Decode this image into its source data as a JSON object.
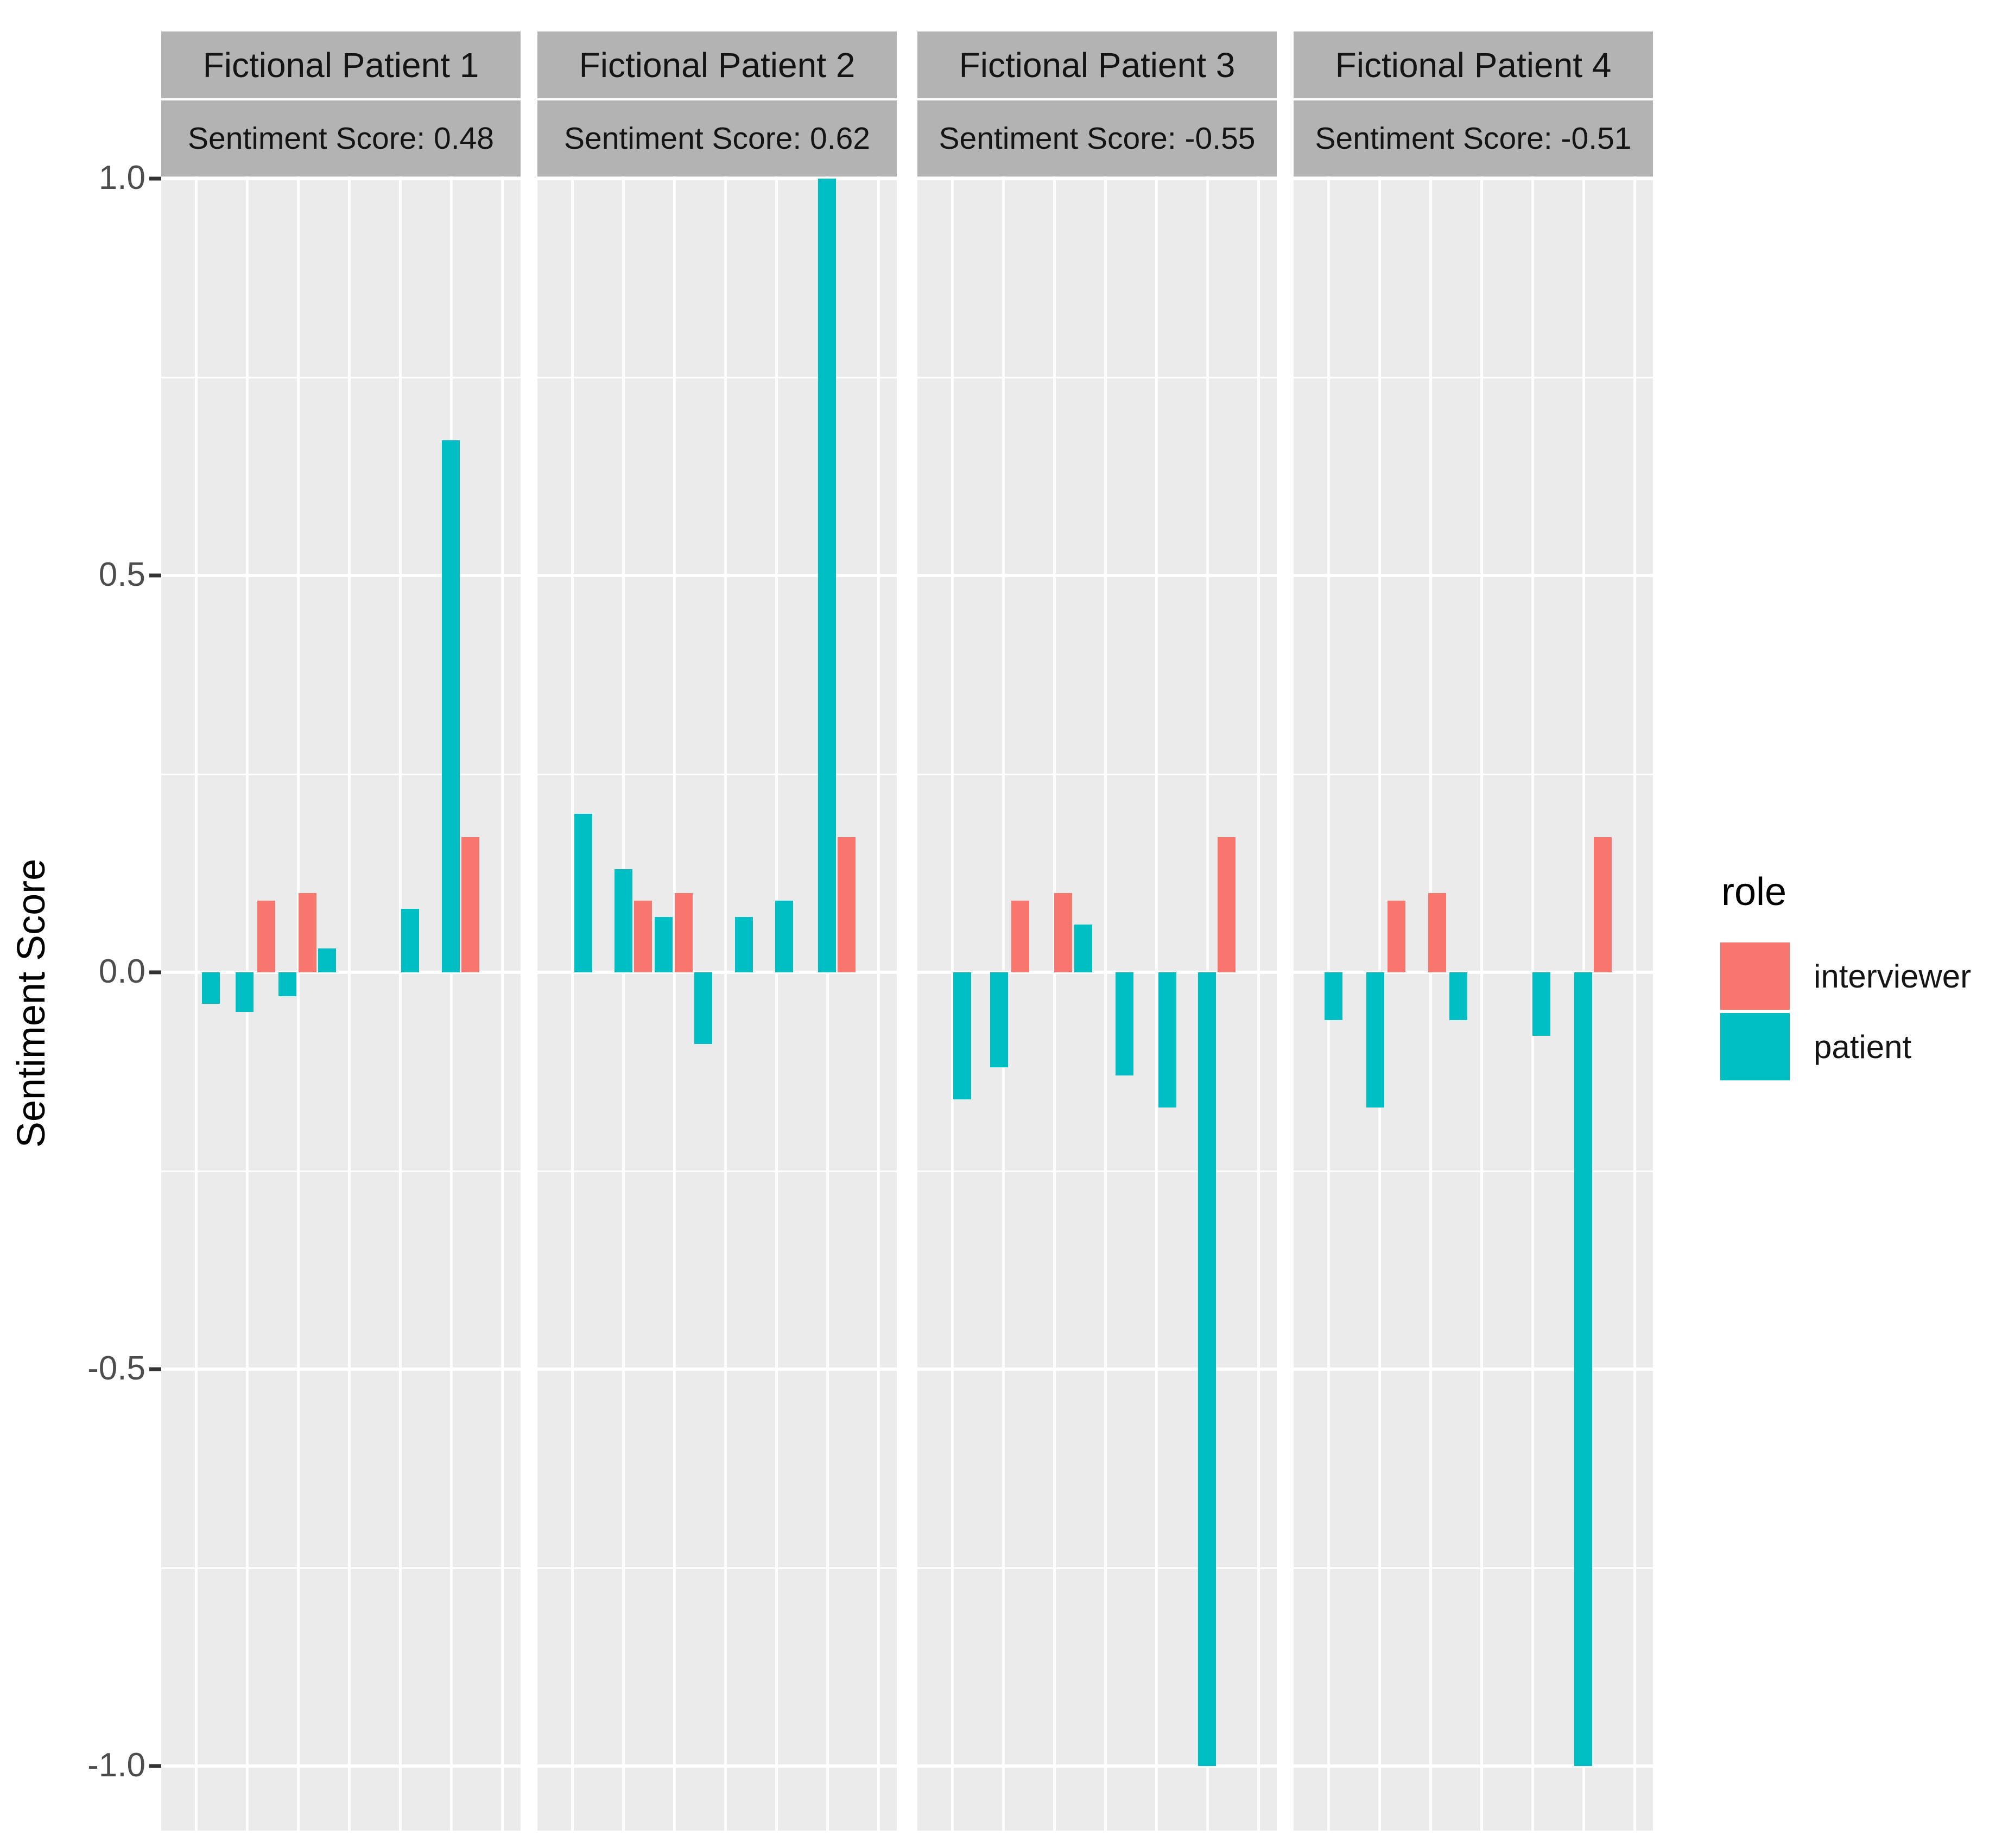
{
  "chart_data": {
    "type": "bar",
    "title": "",
    "xlabel": "",
    "ylabel": "Sentiment Score",
    "ylim": [
      -1.0,
      1.0
    ],
    "grid": true,
    "x_tick_labels": [],
    "y_major_ticks": [
      1.0,
      0.5,
      0.0,
      -0.5,
      -1.0
    ],
    "y_tick_labels": [
      "1.0",
      "0.5",
      "0.0",
      "-0.5",
      "-1.0"
    ],
    "y_minor_ticks": [
      0.75,
      0.25,
      -0.25,
      -0.75
    ],
    "legend_position": "right",
    "legend": {
      "title": "role",
      "entries": [
        {
          "label": "interviewer",
          "role": "interviewer",
          "color": "#F8766D"
        },
        {
          "label": "patient",
          "role": "patient",
          "color": "#00BFC4"
        }
      ]
    },
    "facets": [
      {
        "title": "Fictional Patient 1",
        "subtitle": "Sentiment Score: 0.48",
        "sentiment_score": 0.48,
        "bars": [
          {
            "x": 0.138,
            "role": "patient",
            "value": -0.04
          },
          {
            "x": 0.232,
            "role": "patient",
            "value": -0.05
          },
          {
            "x": 0.292,
            "role": "interviewer",
            "value": 0.09
          },
          {
            "x": 0.351,
            "role": "patient",
            "value": -0.03
          },
          {
            "x": 0.407,
            "role": "interviewer",
            "value": 0.1
          },
          {
            "x": 0.462,
            "role": "patient",
            "value": 0.03
          },
          {
            "x": 0.693,
            "role": "patient",
            "value": 0.08
          },
          {
            "x": 0.806,
            "role": "patient",
            "value": 0.67
          },
          {
            "x": 0.861,
            "role": "interviewer",
            "value": 0.17
          }
        ]
      },
      {
        "title": "Fictional Patient 2",
        "subtitle": "Sentiment Score: 0.62",
        "sentiment_score": 0.62,
        "bars": [
          {
            "x": 0.128,
            "role": "patient",
            "value": 0.2
          },
          {
            "x": 0.24,
            "role": "patient",
            "value": 0.13
          },
          {
            "x": 0.294,
            "role": "interviewer",
            "value": 0.09
          },
          {
            "x": 0.351,
            "role": "patient",
            "value": 0.07
          },
          {
            "x": 0.407,
            "role": "interviewer",
            "value": 0.1
          },
          {
            "x": 0.461,
            "role": "patient",
            "value": -0.09
          },
          {
            "x": 0.575,
            "role": "patient",
            "value": 0.07
          },
          {
            "x": 0.686,
            "role": "patient",
            "value": 0.09
          },
          {
            "x": 0.806,
            "role": "patient",
            "value": 1.0
          },
          {
            "x": 0.861,
            "role": "interviewer",
            "value": 0.17
          }
        ]
      },
      {
        "title": "Fictional Patient 3",
        "subtitle": "Sentiment Score: -0.55",
        "sentiment_score": -0.55,
        "bars": [
          {
            "x": 0.124,
            "role": "patient",
            "value": -0.16
          },
          {
            "x": 0.228,
            "role": "patient",
            "value": -0.12
          },
          {
            "x": 0.287,
            "role": "interviewer",
            "value": 0.09
          },
          {
            "x": 0.405,
            "role": "interviewer",
            "value": 0.1
          },
          {
            "x": 0.462,
            "role": "patient",
            "value": 0.06
          },
          {
            "x": 0.577,
            "role": "patient",
            "value": -0.13
          },
          {
            "x": 0.695,
            "role": "patient",
            "value": -0.17
          },
          {
            "x": 0.806,
            "role": "patient",
            "value": -1.0
          },
          {
            "x": 0.861,
            "role": "interviewer",
            "value": 0.17
          }
        ]
      },
      {
        "title": "Fictional Patient 4",
        "subtitle": "Sentiment Score: -0.51",
        "sentiment_score": -0.51,
        "bars": [
          {
            "x": 0.111,
            "role": "patient",
            "value": -0.06
          },
          {
            "x": 0.227,
            "role": "patient",
            "value": -0.17
          },
          {
            "x": 0.286,
            "role": "interviewer",
            "value": 0.09
          },
          {
            "x": 0.4,
            "role": "interviewer",
            "value": 0.1
          },
          {
            "x": 0.459,
            "role": "patient",
            "value": -0.06
          },
          {
            "x": 0.69,
            "role": "patient",
            "value": -0.08
          },
          {
            "x": 0.806,
            "role": "patient",
            "value": -1.0
          },
          {
            "x": 0.861,
            "role": "interviewer",
            "value": 0.17
          }
        ]
      }
    ]
  },
  "colors": {
    "background": "#FFFFFF",
    "panel_background": "#EBEBEB",
    "gridline": "#FFFFFF",
    "strip_background": "#B3B3B3",
    "strip_text": "#141414",
    "axis_text": "#4D4D4D",
    "tick_mark": "#333333",
    "interviewer": "#F8766D",
    "patient": "#00BFC4"
  }
}
